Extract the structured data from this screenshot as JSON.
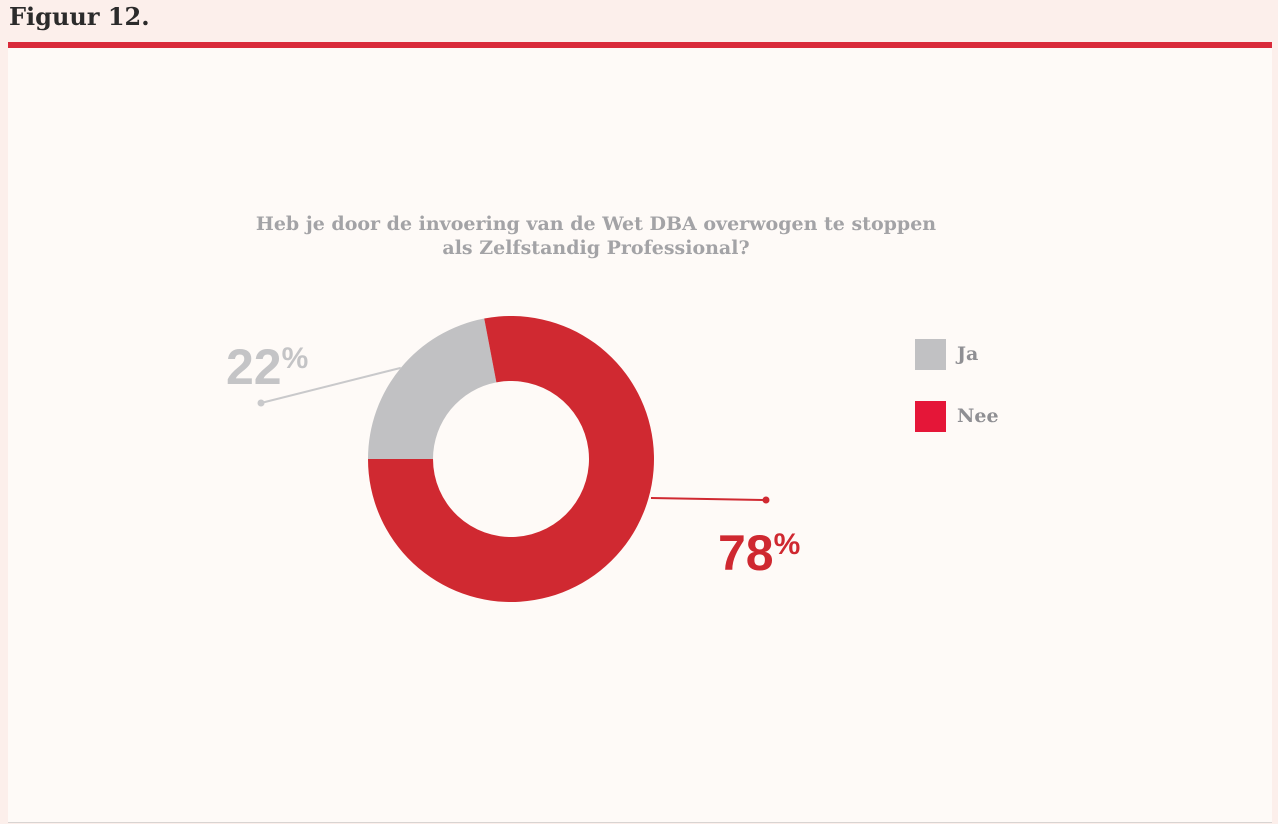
{
  "figure_label": "Figuur 12.",
  "colors": {
    "accent": "#d92a3a",
    "ja": "#c1c1c3",
    "nee_slice": "#d02931",
    "nee_legend": "#e51638"
  },
  "chart_data": {
    "type": "pie",
    "donut": true,
    "title": "Heb je door de invoering van de Wet DBA overwogen te stoppen als Zelfstandig Professional?",
    "title_lines": [
      "Heb je door de invoering van de Wet DBA overwogen te stoppen",
      "als Zelfstandig Professional?"
    ],
    "categories": [
      "Ja",
      "Nee"
    ],
    "values": [
      22,
      78
    ],
    "value_labels": [
      "22%",
      "78%"
    ],
    "legend": {
      "position": "right",
      "entries": [
        "Ja",
        "Nee"
      ]
    }
  }
}
